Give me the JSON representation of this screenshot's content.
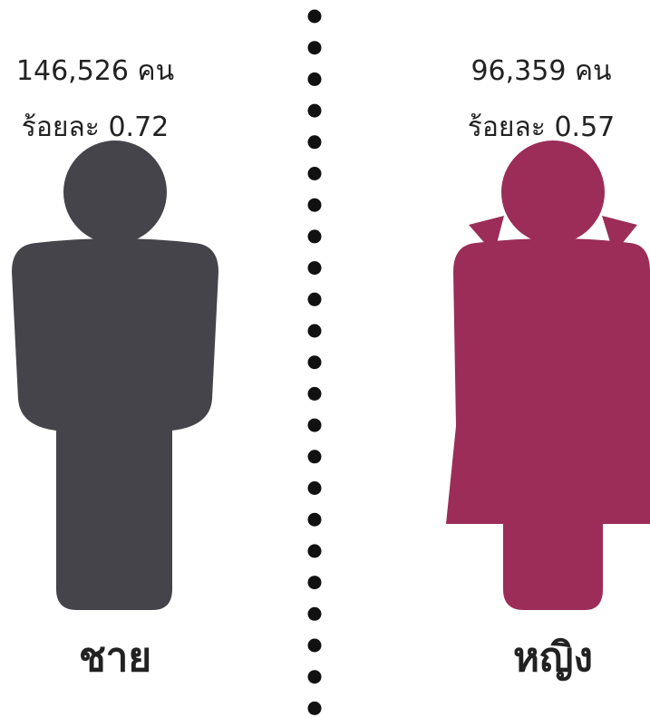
{
  "left": {
    "count": "146,526 คน",
    "percent": "ร้อยละ 0.72",
    "label": "ชาย"
  },
  "right": {
    "count": "96,359 คน",
    "percent": "ร้อยละ 0.57",
    "label": "หญิง"
  }
}
